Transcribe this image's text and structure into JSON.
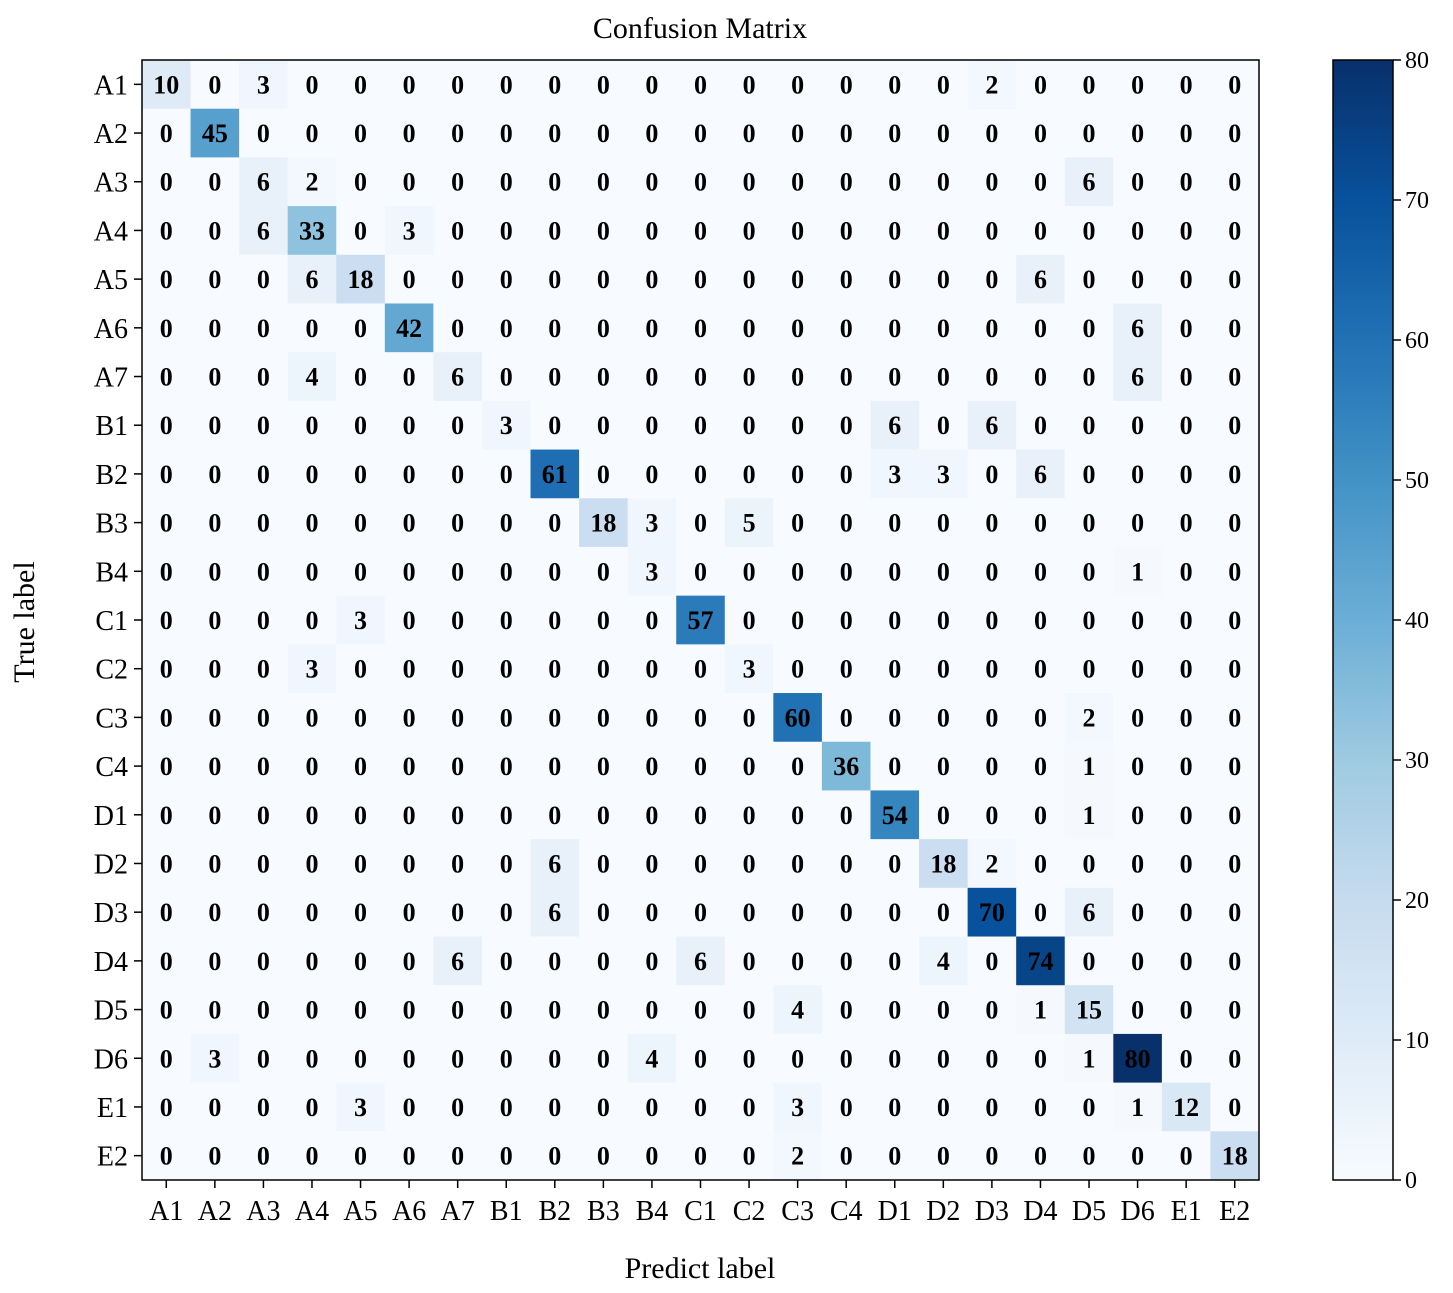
{
  "chart_data": {
    "type": "heatmap",
    "title": "Confusion Matrix",
    "xlabel": "Predict label",
    "ylabel": "True label",
    "labels": [
      "A1",
      "A2",
      "A3",
      "A4",
      "A5",
      "A6",
      "A7",
      "B1",
      "B2",
      "B3",
      "B4",
      "C1",
      "C2",
      "C3",
      "C4",
      "D1",
      "D2",
      "D3",
      "D4",
      "D5",
      "D6",
      "E1",
      "E2"
    ],
    "matrix": [
      [
        10,
        0,
        3,
        0,
        0,
        0,
        0,
        0,
        0,
        0,
        0,
        0,
        0,
        0,
        0,
        0,
        0,
        2,
        0,
        0,
        0,
        0,
        0
      ],
      [
        0,
        45,
        0,
        0,
        0,
        0,
        0,
        0,
        0,
        0,
        0,
        0,
        0,
        0,
        0,
        0,
        0,
        0,
        0,
        0,
        0,
        0,
        0
      ],
      [
        0,
        0,
        6,
        2,
        0,
        0,
        0,
        0,
        0,
        0,
        0,
        0,
        0,
        0,
        0,
        0,
        0,
        0,
        0,
        6,
        0,
        0,
        0
      ],
      [
        0,
        0,
        6,
        33,
        0,
        3,
        0,
        0,
        0,
        0,
        0,
        0,
        0,
        0,
        0,
        0,
        0,
        0,
        0,
        0,
        0,
        0,
        0
      ],
      [
        0,
        0,
        0,
        6,
        18,
        0,
        0,
        0,
        0,
        0,
        0,
        0,
        0,
        0,
        0,
        0,
        0,
        0,
        6,
        0,
        0,
        0,
        0
      ],
      [
        0,
        0,
        0,
        0,
        0,
        42,
        0,
        0,
        0,
        0,
        0,
        0,
        0,
        0,
        0,
        0,
        0,
        0,
        0,
        0,
        6,
        0,
        0
      ],
      [
        0,
        0,
        0,
        4,
        0,
        0,
        6,
        0,
        0,
        0,
        0,
        0,
        0,
        0,
        0,
        0,
        0,
        0,
        0,
        0,
        6,
        0,
        0
      ],
      [
        0,
        0,
        0,
        0,
        0,
        0,
        0,
        3,
        0,
        0,
        0,
        0,
        0,
        0,
        0,
        6,
        0,
        6,
        0,
        0,
        0,
        0,
        0
      ],
      [
        0,
        0,
        0,
        0,
        0,
        0,
        0,
        0,
        61,
        0,
        0,
        0,
        0,
        0,
        0,
        3,
        3,
        0,
        6,
        0,
        0,
        0,
        0
      ],
      [
        0,
        0,
        0,
        0,
        0,
        0,
        0,
        0,
        0,
        18,
        3,
        0,
        5,
        0,
        0,
        0,
        0,
        0,
        0,
        0,
        0,
        0,
        0
      ],
      [
        0,
        0,
        0,
        0,
        0,
        0,
        0,
        0,
        0,
        0,
        3,
        0,
        0,
        0,
        0,
        0,
        0,
        0,
        0,
        0,
        1,
        0,
        0
      ],
      [
        0,
        0,
        0,
        0,
        3,
        0,
        0,
        0,
        0,
        0,
        0,
        57,
        0,
        0,
        0,
        0,
        0,
        0,
        0,
        0,
        0,
        0,
        0
      ],
      [
        0,
        0,
        0,
        3,
        0,
        0,
        0,
        0,
        0,
        0,
        0,
        0,
        3,
        0,
        0,
        0,
        0,
        0,
        0,
        0,
        0,
        0,
        0
      ],
      [
        0,
        0,
        0,
        0,
        0,
        0,
        0,
        0,
        0,
        0,
        0,
        0,
        0,
        60,
        0,
        0,
        0,
        0,
        0,
        2,
        0,
        0,
        0
      ],
      [
        0,
        0,
        0,
        0,
        0,
        0,
        0,
        0,
        0,
        0,
        0,
        0,
        0,
        0,
        36,
        0,
        0,
        0,
        0,
        1,
        0,
        0,
        0
      ],
      [
        0,
        0,
        0,
        0,
        0,
        0,
        0,
        0,
        0,
        0,
        0,
        0,
        0,
        0,
        0,
        54,
        0,
        0,
        0,
        1,
        0,
        0,
        0
      ],
      [
        0,
        0,
        0,
        0,
        0,
        0,
        0,
        0,
        6,
        0,
        0,
        0,
        0,
        0,
        0,
        0,
        18,
        2,
        0,
        0,
        0,
        0,
        0
      ],
      [
        0,
        0,
        0,
        0,
        0,
        0,
        0,
        0,
        6,
        0,
        0,
        0,
        0,
        0,
        0,
        0,
        0,
        70,
        0,
        6,
        0,
        0,
        0
      ],
      [
        0,
        0,
        0,
        0,
        0,
        0,
        6,
        0,
        0,
        0,
        0,
        6,
        0,
        0,
        0,
        0,
        4,
        0,
        74,
        0,
        0,
        0,
        0
      ],
      [
        0,
        0,
        0,
        0,
        0,
        0,
        0,
        0,
        0,
        0,
        0,
        0,
        0,
        4,
        0,
        0,
        0,
        0,
        1,
        15,
        0,
        0,
        0
      ],
      [
        0,
        3,
        0,
        0,
        0,
        0,
        0,
        0,
        0,
        0,
        4,
        0,
        0,
        0,
        0,
        0,
        0,
        0,
        0,
        1,
        80,
        0,
        0
      ],
      [
        0,
        0,
        0,
        0,
        3,
        0,
        0,
        0,
        0,
        0,
        0,
        0,
        0,
        3,
        0,
        0,
        0,
        0,
        0,
        0,
        1,
        12,
        0
      ],
      [
        0,
        0,
        0,
        0,
        0,
        0,
        0,
        0,
        0,
        0,
        0,
        0,
        0,
        2,
        0,
        0,
        0,
        0,
        0,
        0,
        0,
        0,
        18
      ]
    ],
    "colorbar": {
      "range": [
        0,
        80
      ],
      "ticks": [
        "0",
        "10",
        "20",
        "30",
        "40",
        "50",
        "60",
        "70",
        "80"
      ],
      "colormap": "Blues",
      "low_color": "#f7fbff",
      "high_color": "#08306b"
    }
  }
}
